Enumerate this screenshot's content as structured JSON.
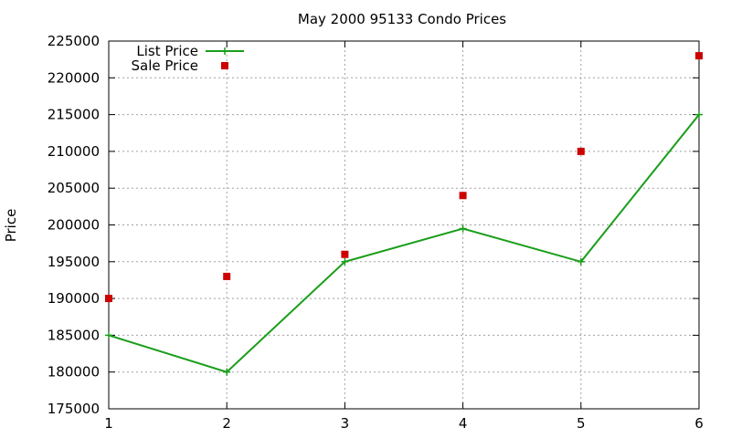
{
  "chart_data": {
    "type": "line",
    "title": "May 2000 95133 Condo Prices",
    "xlabel": "",
    "ylabel": "Price",
    "x": [
      1,
      2,
      3,
      4,
      5,
      6
    ],
    "xlim": [
      1,
      6
    ],
    "ylim": [
      175000,
      225000
    ],
    "xticks": [
      "1",
      "2",
      "3",
      "4",
      "5",
      "6"
    ],
    "yticks": [
      "175000",
      "180000",
      "185000",
      "190000",
      "195000",
      "200000",
      "205000",
      "210000",
      "215000",
      "220000",
      "225000"
    ],
    "grid": true,
    "legend_position": "top-left",
    "series": [
      {
        "name": "List Price",
        "style": "line-plus",
        "color": "#1a9e1a",
        "values": [
          185000,
          180000,
          195000,
          199500,
          195000,
          215000
        ]
      },
      {
        "name": "Sale Price",
        "style": "square-points",
        "color": "#cc0000",
        "values": [
          190000,
          193000,
          196000,
          204000,
          210000,
          223000
        ]
      }
    ]
  }
}
